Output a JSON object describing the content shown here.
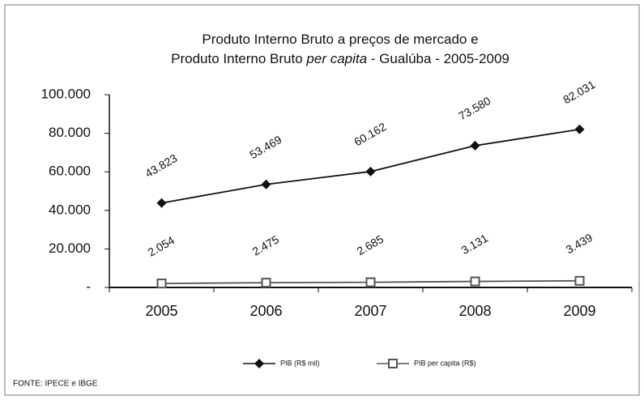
{
  "chart_data": {
    "type": "line",
    "title": [
      [
        "Produto Interno Bruto a preços de mercado  e"
      ],
      [
        "Produto Interno Bruto ",
        "per capita",
        " - Gualúba - 2005-2009"
      ]
    ],
    "categories": [
      "2005",
      "2006",
      "2007",
      "2008",
      "2009"
    ],
    "series": [
      {
        "name": "PIB (R$ mil)",
        "color": "#111111",
        "marker": "diamond",
        "values": [
          43823,
          53469,
          60162,
          73580,
          82031
        ],
        "value_labels": [
          "43.823",
          "53.469",
          "60.162",
          "73.580",
          "82.031"
        ]
      },
      {
        "name": "PIB per capita (R$)",
        "color": "#555555",
        "marker": "square",
        "values": [
          2054,
          2475,
          2685,
          3131,
          3439
        ],
        "value_labels": [
          "2.054",
          "2.475",
          "2.685",
          "3.131",
          "3.439"
        ]
      }
    ],
    "ylim": [
      0,
      100000
    ],
    "yticks": [
      {
        "value": 0,
        "label": "-"
      },
      {
        "value": 20000,
        "label": "20.000"
      },
      {
        "value": 40000,
        "label": "40.000"
      },
      {
        "value": 60000,
        "label": "60.000"
      },
      {
        "value": 80000,
        "label": "80.000"
      },
      {
        "value": 100000,
        "label": "100.000"
      }
    ],
    "grid": false,
    "legend": "bottom",
    "source": "FONTE: IPECE e IBGE"
  }
}
